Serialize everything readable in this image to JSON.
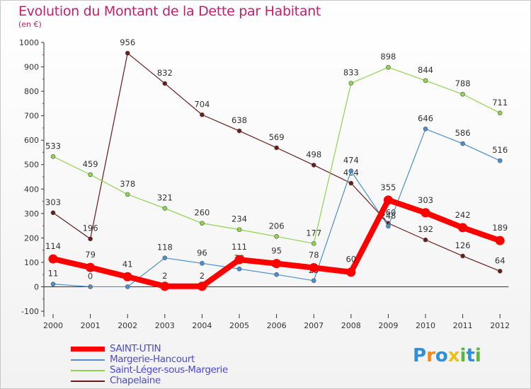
{
  "title": "Evolution du Montant de la Dette par Habitant",
  "subtitle": "(en €)",
  "chart_data": {
    "type": "line",
    "title": "Evolution du Montant de la Dette par Habitant",
    "subtitle": "(en €)",
    "xlabel": "",
    "ylabel": "",
    "x": [
      "2000",
      "2001",
      "2002",
      "2003",
      "2004",
      "2005",
      "2006",
      "2007",
      "2008",
      "2009",
      "2010",
      "2011",
      "2012"
    ],
    "ylim": [
      -100,
      1000
    ],
    "yticks": [
      -100,
      0,
      100,
      200,
      300,
      400,
      500,
      600,
      700,
      800,
      900,
      1000
    ],
    "grid": false,
    "legend_position": "bottom-left",
    "series": [
      {
        "name": "SAINT-UTIN",
        "color": "#ff0000",
        "values": [
          114,
          79,
          41,
          2,
          2,
          111,
          95,
          78,
          60,
          355,
          303,
          242,
          189
        ]
      },
      {
        "name": "Margerie-Hancourt",
        "color": "#4a8fd0",
        "values": [
          11,
          0,
          0,
          118,
          96,
          73,
          50,
          25,
          474,
          248,
          646,
          586,
          516
        ]
      },
      {
        "name": "Saint-Léger-sous-Margerie",
        "color": "#8ed44e",
        "values": [
          533,
          459,
          378,
          321,
          260,
          234,
          206,
          177,
          833,
          898,
          844,
          788,
          711
        ]
      },
      {
        "name": "Chapelaine",
        "color": "#6b1a1a",
        "values": [
          303,
          196,
          956,
          832,
          704,
          638,
          569,
          498,
          424,
          260,
          192,
          126,
          64
        ]
      }
    ]
  },
  "legend": [
    {
      "label": "SAINT-UTIN",
      "color": "#ff0000"
    },
    {
      "label": "Margerie-Hancourt",
      "color": "#4a8fd0"
    },
    {
      "label": "Saint-Léger-sous-Margerie",
      "color": "#8ed44e"
    },
    {
      "label": "Chapelaine",
      "color": "#6b1a1a"
    }
  ],
  "logo": {
    "letters": [
      "P",
      "r",
      "o",
      "x",
      "i",
      "t",
      "i"
    ],
    "colors": [
      "#2f8fd8",
      "#f08a1a",
      "#2f8fd8",
      "#e8c21a",
      "#5bb83a",
      "#2f8fd8",
      "#5bb83a"
    ]
  }
}
